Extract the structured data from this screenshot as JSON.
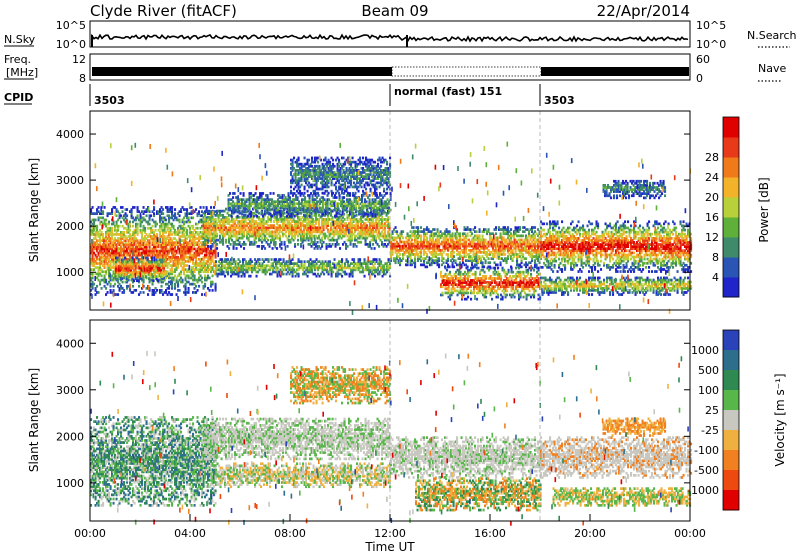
{
  "header": {
    "station": "Clyde River (fitACF)",
    "beam": "Beam 09",
    "date": "22/Apr/2014"
  },
  "status_panels": {
    "nsky_label": "N.Sky",
    "nsearch_label": "N.Search",
    "noise_ticks_left": [
      "10^5",
      "10^0"
    ],
    "noise_ticks_right": [
      "10^5",
      "10^0"
    ],
    "freq_label_line1": "Freq.",
    "freq_label_line2": "[MHz]",
    "freq_ticks": [
      "12",
      "8"
    ],
    "nave_label": "Nave",
    "nave_ticks": [
      "60",
      "0"
    ],
    "cpid_label": "CPID",
    "cpid_segments": [
      {
        "start_h": 0,
        "label": "3503"
      },
      {
        "start_h": 12,
        "label": "normal (fast) 151"
      },
      {
        "start_h": 18,
        "label": "3503"
      }
    ]
  },
  "chart_data": [
    {
      "type": "heatmap",
      "name": "power",
      "ylabel": "Slant Range [km]",
      "ylim": [
        180,
        4500
      ],
      "yticks": [
        1000,
        2000,
        3000,
        4000
      ],
      "xlim": [
        0,
        24
      ],
      "colorbar_label": "Power [dB]",
      "colorbar_ticks": [
        "4",
        "8",
        "12",
        "16",
        "20",
        "24",
        "28"
      ],
      "colors": [
        "#1f25c8",
        "#2a55b4",
        "#3f8a6a",
        "#5fb03a",
        "#b8d13a",
        "#f2b22a",
        "#f07a1a",
        "#e83a18",
        "#e00000"
      ],
      "bands": [
        {
          "t0": 0.0,
          "t1": 5.0,
          "r0": 500,
          "r1": 2400,
          "peak": 7
        },
        {
          "t0": 1.0,
          "t1": 3.0,
          "r0": 800,
          "r1": 1300,
          "peak": 8
        },
        {
          "t0": 4.5,
          "t1": 12.0,
          "r0": 1500,
          "r1": 2400,
          "peak": 6
        },
        {
          "t0": 5.5,
          "t1": 12.0,
          "r0": 2200,
          "r1": 2700,
          "peak": 3
        },
        {
          "t0": 5.0,
          "t1": 12.0,
          "r0": 900,
          "r1": 1300,
          "peak": 4
        },
        {
          "t0": 8.0,
          "t1": 12.0,
          "r0": 2700,
          "r1": 3500,
          "peak": 2
        },
        {
          "t0": 12.0,
          "t1": 18.0,
          "r0": 1100,
          "r1": 2000,
          "peak": 7
        },
        {
          "t0": 14.0,
          "t1": 18.0,
          "r0": 400,
          "r1": 1100,
          "peak": 8
        },
        {
          "t0": 18.0,
          "t1": 24.0,
          "r0": 1000,
          "r1": 2100,
          "peak": 8
        },
        {
          "t0": 18.0,
          "t1": 24.0,
          "r0": 500,
          "r1": 900,
          "peak": 5
        },
        {
          "t0": 20.5,
          "t1": 23.0,
          "r0": 2600,
          "r1": 3000,
          "peak": 2
        }
      ]
    },
    {
      "type": "heatmap",
      "name": "velocity",
      "ylabel": "Slant Range [km]",
      "ylim": [
        180,
        4500
      ],
      "yticks": [
        1000,
        2000,
        3000,
        4000
      ],
      "xlim": [
        0,
        24
      ],
      "xlabel": "Time UT",
      "xticks": [
        "00:00",
        "04:00",
        "08:00",
        "12:00",
        "16:00",
        "20:00",
        "00:00"
      ],
      "colorbar_label": "Velocity [m s⁻¹]",
      "colorbar_ticks": [
        "1000",
        "500",
        "100",
        "25",
        "-25",
        "-100",
        "-500",
        "-1000"
      ],
      "colors": [
        "#2a43b8",
        "#2c6e8c",
        "#2f8a52",
        "#59b64a",
        "#c8c8c0",
        "#f0b040",
        "#f08020",
        "#ee4a10",
        "#e00000"
      ],
      "bands": [
        {
          "t0": 0.0,
          "t1": 5.0,
          "r0": 500,
          "r1": 2400,
          "mix": [
            1,
            2,
            3,
            4
          ]
        },
        {
          "t0": 4.5,
          "t1": 12.0,
          "r0": 1500,
          "r1": 2400,
          "mix": [
            4,
            4,
            3
          ]
        },
        {
          "t0": 5.0,
          "t1": 12.0,
          "r0": 900,
          "r1": 1400,
          "mix": [
            3,
            4,
            5
          ]
        },
        {
          "t0": 8.0,
          "t1": 12.0,
          "r0": 2700,
          "r1": 3500,
          "mix": [
            5,
            6,
            3
          ]
        },
        {
          "t0": 12.0,
          "t1": 18.0,
          "r0": 1100,
          "r1": 2000,
          "mix": [
            4,
            4,
            4,
            3
          ]
        },
        {
          "t0": 13.0,
          "t1": 18.0,
          "r0": 400,
          "r1": 1100,
          "mix": [
            6,
            2,
            3,
            5
          ]
        },
        {
          "t0": 18.0,
          "t1": 24.0,
          "r0": 1100,
          "r1": 2000,
          "mix": [
            4,
            4,
            4,
            6
          ]
        },
        {
          "t0": 18.5,
          "t1": 24.0,
          "r0": 500,
          "r1": 900,
          "mix": [
            3,
            5
          ]
        },
        {
          "t0": 20.5,
          "t1": 23.0,
          "r0": 2000,
          "r1": 2400,
          "mix": [
            6,
            5
          ]
        }
      ]
    }
  ]
}
